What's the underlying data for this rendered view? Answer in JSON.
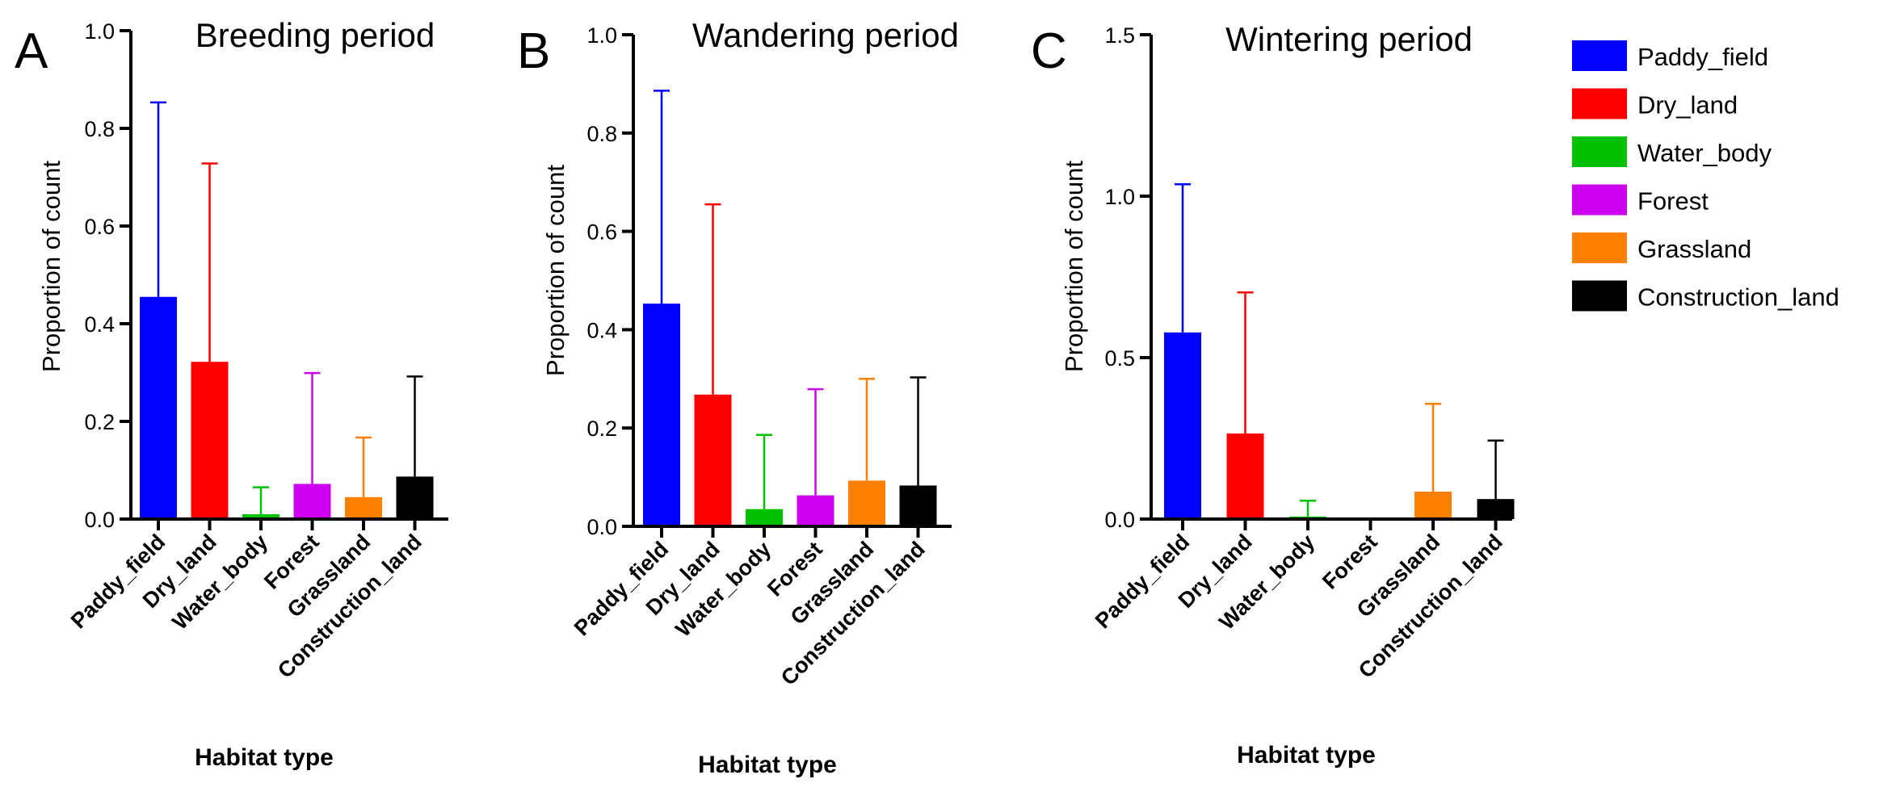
{
  "chart_data": [
    {
      "type": "bar",
      "panel": "A",
      "title": "Breeding period",
      "xlabel": "Habitat type",
      "ylabel": "Proportion of count",
      "ylim": [
        0,
        1.0
      ],
      "yticks": [
        "0.0",
        "0.2",
        "0.4",
        "0.6",
        "0.8",
        "1.0"
      ],
      "ytick_values": [
        0,
        0.2,
        0.4,
        0.6,
        0.8,
        1.0
      ],
      "categories": [
        "Paddy_field",
        "Dry_land",
        "Water_body",
        "Forest",
        "Grassland",
        "Construction_land"
      ],
      "values": [
        0.455,
        0.322,
        0.01,
        0.072,
        0.045,
        0.087
      ],
      "error_upper": [
        0.853,
        0.728,
        0.065,
        0.299,
        0.167,
        0.292
      ]
    },
    {
      "type": "bar",
      "panel": "B",
      "title": "Wandering period",
      "xlabel": "Habitat type",
      "ylabel": "Proportion of count",
      "ylim": [
        0,
        1.0
      ],
      "yticks": [
        "0.0",
        "0.2",
        "0.4",
        "0.6",
        "0.8",
        "1.0"
      ],
      "ytick_values": [
        0,
        0.2,
        0.4,
        0.6,
        0.8,
        1.0
      ],
      "categories": [
        "Paddy_field",
        "Dry_land",
        "Water_body",
        "Forest",
        "Grassland",
        "Construction_land"
      ],
      "values": [
        0.453,
        0.268,
        0.035,
        0.063,
        0.093,
        0.083
      ],
      "error_upper": [
        0.886,
        0.655,
        0.186,
        0.279,
        0.3,
        0.303
      ]
    },
    {
      "type": "bar",
      "panel": "C",
      "title": "Wintering period",
      "xlabel": "Habitat type",
      "ylabel": "Proportion of count",
      "ylim": [
        0,
        1.5
      ],
      "yticks": [
        "0.0",
        "0.5",
        "1.0",
        "1.5"
      ],
      "ytick_values": [
        0,
        0.5,
        1.0,
        1.5
      ],
      "categories": [
        "Paddy_field",
        "Dry_land",
        "Water_body",
        "Forest",
        "Grassland",
        "Construction_land"
      ],
      "values": [
        0.578,
        0.265,
        0.008,
        0.0,
        0.085,
        0.062
      ],
      "error_upper": [
        1.037,
        0.702,
        0.057,
        0.0,
        0.357,
        0.243
      ]
    }
  ],
  "legend": {
    "position": "top-right",
    "items": [
      {
        "label": "Paddy_field",
        "color": "#0000ff"
      },
      {
        "label": "Dry_land",
        "color": "#ff0000"
      },
      {
        "label": "Water_body",
        "color": "#00c000"
      },
      {
        "label": "Forest",
        "color": "#cc00ee"
      },
      {
        "label": "Grassland",
        "color": "#ff8000"
      },
      {
        "label": "Construction_land",
        "color": "#000000"
      }
    ]
  }
}
